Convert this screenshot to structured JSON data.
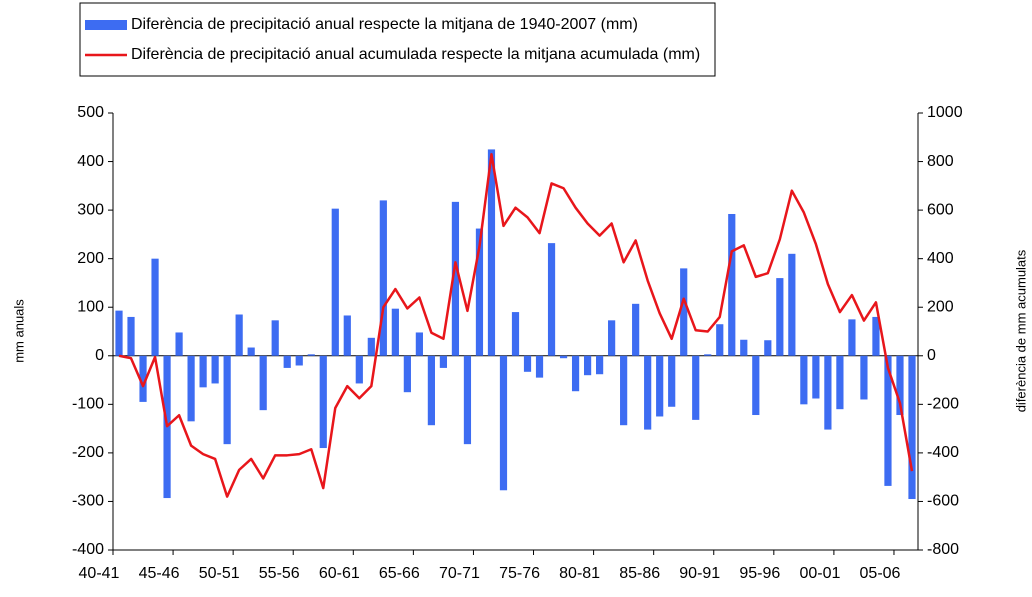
{
  "chart_data": {
    "type": "bar_line",
    "categories": [
      "40-41",
      null,
      null,
      null,
      null,
      "45-46",
      null,
      null,
      null,
      null,
      "50-51",
      null,
      null,
      null,
      null,
      "55-56",
      null,
      null,
      null,
      null,
      "60-61",
      null,
      null,
      null,
      null,
      "65-66",
      null,
      null,
      null,
      null,
      "70-71",
      null,
      null,
      null,
      null,
      "75-76",
      null,
      null,
      null,
      null,
      "80-81",
      null,
      null,
      null,
      null,
      "85-86",
      null,
      null,
      null,
      null,
      "90-91",
      null,
      null,
      null,
      null,
      "95-96",
      null,
      null,
      null,
      null,
      "00-01",
      null,
      null,
      null,
      null,
      "05-06",
      null
    ],
    "series": [
      {
        "name": "Diferència de precipitació anual respecte la mitjana de 1940-2007 (mm)",
        "type": "bar",
        "color": "#3d6cf2",
        "axis": "y",
        "values": [
          93,
          80,
          -95,
          200,
          -293,
          48,
          -135,
          -65,
          -57,
          -182,
          85,
          17,
          -112,
          73,
          -25,
          -20,
          3,
          -190,
          303,
          83,
          -57,
          37,
          320,
          97,
          -75,
          48,
          -143,
          -25,
          317,
          -182,
          262,
          425,
          -277,
          90,
          -33,
          -45,
          232,
          -5,
          -73,
          -40,
          -38,
          73,
          -143,
          107,
          -152,
          -125,
          -105,
          180,
          -132,
          3,
          65,
          292,
          33,
          -122,
          32,
          160,
          210,
          -100,
          -88,
          -152,
          -110,
          75,
          -90,
          80,
          -268,
          -122,
          -295
        ]
      },
      {
        "name": "Diferència de precipitació anual acumulada respecte la mitjana acumulada (mm)",
        "type": "line",
        "color": "#e8161b",
        "axis": "y2",
        "values": [
          0,
          -10,
          -125,
          -5,
          -290,
          -245,
          -370,
          -405,
          -425,
          -580,
          -470,
          -425,
          -505,
          -410,
          -410,
          -405,
          -385,
          -545,
          -215,
          -125,
          -175,
          -125,
          200,
          275,
          195,
          240,
          95,
          70,
          385,
          185,
          450,
          830,
          535,
          610,
          570,
          505,
          710,
          690,
          610,
          545,
          495,
          545,
          385,
          475,
          310,
          175,
          70,
          235,
          105,
          100,
          160,
          430,
          455,
          325,
          340,
          480,
          680,
          590,
          460,
          295,
          180,
          250,
          145,
          220,
          -50,
          -195,
          -475
        ]
      }
    ],
    "ylabel": "mm anuals",
    "y2label": "diferència de mm acumulats",
    "ylim": [
      -400,
      500
    ],
    "yticks": [
      -400,
      -300,
      -200,
      -100,
      0,
      100,
      200,
      300,
      400,
      500
    ],
    "y2lim": [
      -800,
      1000
    ],
    "y2ticks": [
      -800,
      -600,
      -400,
      -200,
      0,
      200,
      400,
      600,
      800,
      1000
    ],
    "legend": "top"
  }
}
